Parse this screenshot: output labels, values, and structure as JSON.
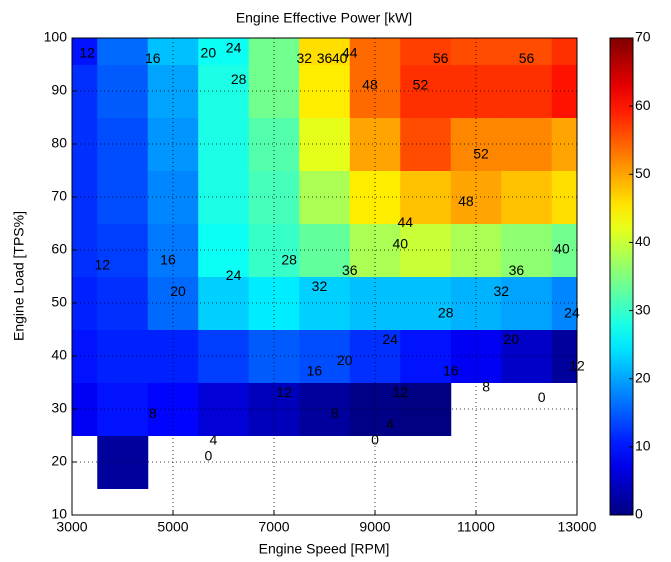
{
  "chart_data": {
    "type": "contour",
    "title": "Engine Effective Power [kW]",
    "x_label": "Engine Speed [RPM]",
    "y_label": "Engine Load [TPS%]",
    "x": [
      3000,
      4000,
      5000,
      6000,
      7000,
      8000,
      9000,
      10000,
      11000,
      12000,
      13000
    ],
    "y": [
      10,
      20,
      30,
      40,
      50,
      60,
      70,
      80,
      90,
      100
    ],
    "z": [
      [
        null,
        null,
        null,
        null,
        null,
        null,
        null,
        null,
        null,
        null,
        null
      ],
      [
        null,
        2,
        null,
        null,
        null,
        null,
        null,
        null,
        null,
        null,
        null
      ],
      [
        8,
        10,
        9,
        6,
        4,
        2,
        0.5,
        0,
        null,
        null,
        null
      ],
      [
        10,
        11,
        11,
        13,
        15,
        14,
        12,
        10,
        8,
        5,
        2
      ],
      [
        11,
        12,
        16,
        23,
        25,
        23,
        22,
        22,
        21,
        20,
        18
      ],
      [
        12,
        13,
        17,
        27,
        30,
        33,
        38,
        40,
        38,
        36,
        34
      ],
      [
        12,
        14,
        18,
        28,
        31,
        38,
        45,
        48,
        50,
        48,
        46
      ],
      [
        12,
        14,
        19,
        28,
        32,
        42,
        50,
        56,
        52,
        52,
        50
      ],
      [
        12,
        15,
        20,
        28,
        34,
        45,
        54,
        58,
        58,
        58,
        60
      ],
      [
        10,
        16,
        22,
        27,
        34,
        46,
        54,
        57,
        56,
        56,
        58
      ]
    ],
    "xlim": [
      3000,
      13000
    ],
    "xticks": [
      3000,
      5000,
      7000,
      9000,
      11000,
      13000
    ],
    "ylim": [
      10,
      100
    ],
    "yticks": [
      10,
      20,
      30,
      40,
      50,
      60,
      70,
      80,
      90,
      100
    ],
    "clim": [
      0,
      70
    ],
    "cticks": [
      0,
      10,
      20,
      30,
      40,
      50,
      60,
      70
    ],
    "colormap": "jet",
    "grid": true,
    "contour_labels": [
      {
        "level": 12,
        "x": 3300,
        "y": 97
      },
      {
        "level": 16,
        "x": 4600,
        "y": 96
      },
      {
        "level": 20,
        "x": 5700,
        "y": 97
      },
      {
        "level": 24,
        "x": 6200,
        "y": 98
      },
      {
        "level": 28,
        "x": 6300,
        "y": 92
      },
      {
        "level": 32,
        "x": 7600,
        "y": 96
      },
      {
        "level": 36,
        "x": 8000,
        "y": 96
      },
      {
        "level": 40,
        "x": 8300,
        "y": 96
      },
      {
        "level": 44,
        "x": 8500,
        "y": 97
      },
      {
        "level": 48,
        "x": 8900,
        "y": 91
      },
      {
        "level": 52,
        "x": 9900,
        "y": 91
      },
      {
        "level": 56,
        "x": 10300,
        "y": 96
      },
      {
        "level": 56,
        "x": 12000,
        "y": 96
      },
      {
        "level": 52,
        "x": 11100,
        "y": 78
      },
      {
        "level": 48,
        "x": 10800,
        "y": 69
      },
      {
        "level": 44,
        "x": 9600,
        "y": 65
      },
      {
        "level": 40,
        "x": 9500,
        "y": 61
      },
      {
        "level": 36,
        "x": 8500,
        "y": 56
      },
      {
        "level": 32,
        "x": 7900,
        "y": 53
      },
      {
        "level": 28,
        "x": 7300,
        "y": 58
      },
      {
        "level": 24,
        "x": 6200,
        "y": 55
      },
      {
        "level": 20,
        "x": 5100,
        "y": 52
      },
      {
        "level": 16,
        "x": 4900,
        "y": 58
      },
      {
        "level": 12,
        "x": 3600,
        "y": 57
      },
      {
        "level": 40,
        "x": 12700,
        "y": 60
      },
      {
        "level": 36,
        "x": 11800,
        "y": 56
      },
      {
        "level": 32,
        "x": 11500,
        "y": 52
      },
      {
        "level": 28,
        "x": 10400,
        "y": 48
      },
      {
        "level": 24,
        "x": 12900,
        "y": 48
      },
      {
        "level": 20,
        "x": 11700,
        "y": 43
      },
      {
        "level": 24,
        "x": 9300,
        "y": 43
      },
      {
        "level": 20,
        "x": 8400,
        "y": 39
      },
      {
        "level": 16,
        "x": 7800,
        "y": 37
      },
      {
        "level": 16,
        "x": 10500,
        "y": 37
      },
      {
        "level": 12,
        "x": 7200,
        "y": 33
      },
      {
        "level": 12,
        "x": 9500,
        "y": 33
      },
      {
        "level": 8,
        "x": 11200,
        "y": 34
      },
      {
        "level": 8,
        "x": 8200,
        "y": 29
      },
      {
        "level": 4,
        "x": 9300,
        "y": 27
      },
      {
        "level": 0,
        "x": 9000,
        "y": 24
      },
      {
        "level": 0,
        "x": 12300,
        "y": 32
      },
      {
        "level": 8,
        "x": 4600,
        "y": 29
      },
      {
        "level": 4,
        "x": 5800,
        "y": 24
      },
      {
        "level": 0,
        "x": 5700,
        "y": 21
      },
      {
        "level": 12,
        "x": 13000,
        "y": 38
      }
    ]
  }
}
